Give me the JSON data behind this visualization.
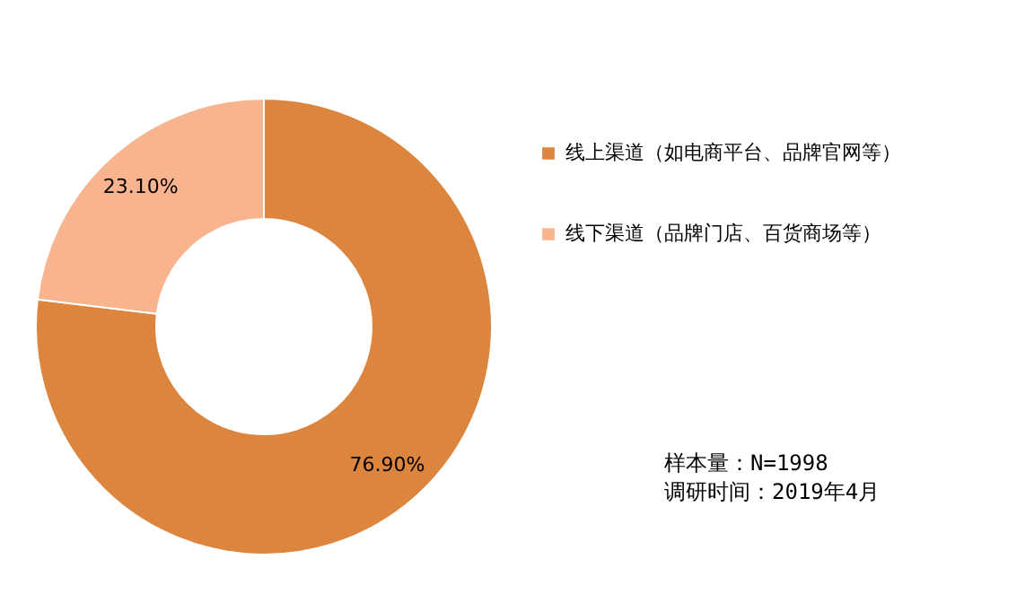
{
  "chart_data": {
    "type": "donut",
    "categories": [
      "线上渠道（如电商平台、品牌官网等）",
      "线下渠道（品牌门店、百货商场等）"
    ],
    "values": [
      76.9,
      23.1
    ],
    "colors": [
      "#dc853e",
      "#f8b48e"
    ],
    "value_labels": [
      "76.90%",
      "23.10%"
    ],
    "legend": "right",
    "annotations": [
      "样本量：N=1998",
      "调研时间：2019年4月"
    ]
  }
}
